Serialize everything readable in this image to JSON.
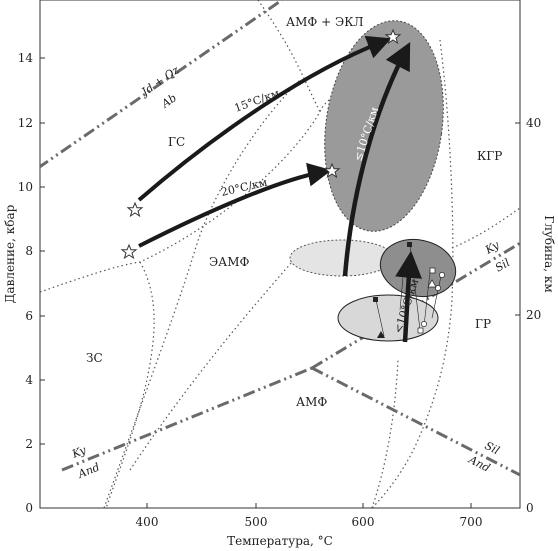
{
  "axes": {
    "xlabel": "Температура, °С",
    "ylabel": "Давление, кбар",
    "y2label": "Глубина, км",
    "x_ticks": [
      "400",
      "500",
      "600",
      "700"
    ],
    "y_ticks": [
      "0",
      "2",
      "4",
      "6",
      "8",
      "10",
      "12",
      "14"
    ],
    "y2_ticks": [
      "0",
      "20",
      "40"
    ]
  },
  "facies": {
    "amf_ekl": "АМФ + ЭКЛ",
    "gs": "ГС",
    "kgr": "КГР",
    "eamf": "ЭАМФ",
    "zs": "ЗС",
    "gr": "ГР",
    "amf": "АМФ"
  },
  "reactions": {
    "jd_qz": "Jd + Qz",
    "ab": "Ab",
    "ky_left": "Ky",
    "and_left": "And",
    "ky_right": "Ky",
    "sil_right": "Sil",
    "sil_bottom": "Sil",
    "and_bottom": "And"
  },
  "gradients": {
    "g15": "15°С/км",
    "g20": "20°С/км",
    "g10_upper": "≤10°С/км",
    "g10_lower": "<10°С/км"
  },
  "colors": {
    "ellipse_dark": "#9a9a9a",
    "ellipse_medium": "#8e8e8e",
    "ellipse_light": "#d8d8d8",
    "ellipse_pale": "#e4e4e4",
    "arrow": "#1a1a1a",
    "reaction_line": "#6a6a6a"
  },
  "chart_data": {
    "type": "diagram",
    "xlim": [
      300,
      750
    ],
    "ylim": [
      0,
      16
    ],
    "y2lim": [
      0,
      50
    ],
    "markers": [
      {
        "symbol": "star",
        "x": 392,
        "y": 9.3
      },
      {
        "symbol": "star",
        "x": 385,
        "y": 7.95
      },
      {
        "symbol": "star",
        "x": 632,
        "y": 14.75
      },
      {
        "symbol": "star",
        "x": 571,
        "y": 10.5
      }
    ],
    "arrows": [
      {
        "from": [
          392,
          9.6
        ],
        "to": [
          628,
          14.6
        ]
      },
      {
        "from": [
          392,
          8.1
        ],
        "to": [
          568,
          10.5
        ]
      },
      {
        "from": [
          585,
          7.3
        ],
        "to": [
          641,
          14.6
        ]
      },
      {
        "from": [
          646,
          5.2
        ],
        "to": [
          662,
          8.1
        ]
      }
    ]
  }
}
